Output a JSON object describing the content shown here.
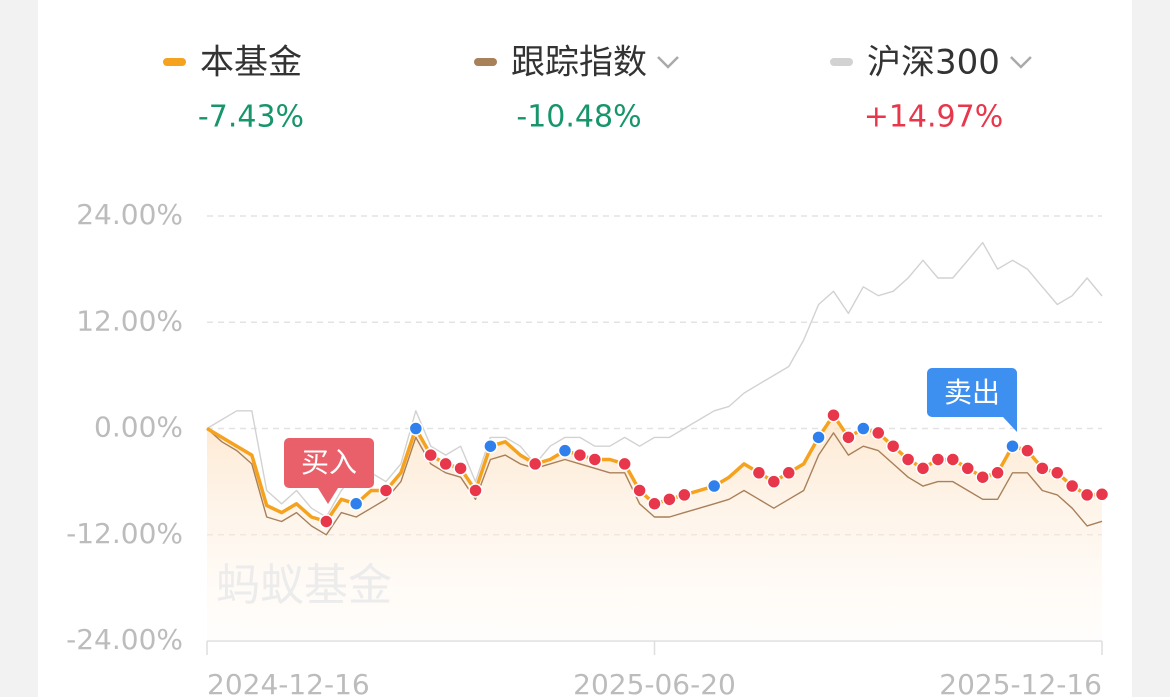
{
  "chart_data": {
    "type": "line",
    "categories": [
      "2024-12-16",
      null,
      null,
      null,
      null,
      null,
      null,
      null,
      null,
      null,
      null,
      null,
      null,
      null,
      null,
      null,
      null,
      null,
      null,
      null,
      null,
      null,
      null,
      null,
      null,
      null,
      null,
      null,
      null,
      null,
      "2025-06-20",
      null,
      null,
      null,
      null,
      null,
      null,
      null,
      null,
      null,
      null,
      null,
      null,
      null,
      null,
      null,
      null,
      null,
      null,
      null,
      null,
      null,
      null,
      null,
      null,
      null,
      null,
      null,
      null,
      null,
      "2025-12-16"
    ],
    "ylim": [
      -24,
      24
    ],
    "yticks": [
      {
        "value": 24,
        "label": "24.00%"
      },
      {
        "value": 12,
        "label": "12.00%"
      },
      {
        "value": 0,
        "label": "0.00%"
      },
      {
        "value": -12,
        "label": "-12.00%"
      },
      {
        "value": -24,
        "label": "-24.00%"
      }
    ],
    "grid": true,
    "watermark": "蚂蚁基金",
    "up_color": "#e8364a",
    "down_color": "#17966a",
    "series": [
      {
        "name": "本基金",
        "color": "#f5a21e",
        "change": -7.43,
        "change_label": "-7.43%",
        "dropdown": false,
        "area": true,
        "values": [
          0,
          -1,
          -2,
          -3,
          -8.7,
          -9.5,
          -8.5,
          -10,
          -10.5,
          -8,
          -8.5,
          -7,
          -7,
          -5,
          0,
          -3,
          -4,
          -4.5,
          -7,
          -2,
          -1.5,
          -3,
          -4,
          -3.5,
          -2.5,
          -3,
          -3.5,
          -3.5,
          -4,
          -7,
          -8.5,
          -8,
          -7.5,
          -7,
          -6.5,
          -5.5,
          -4,
          -5,
          -6,
          -5,
          -4,
          -1,
          1.5,
          -1,
          0,
          -0.5,
          -2,
          -3.5,
          -4.5,
          -3.5,
          -3.5,
          -4.5,
          -5.5,
          -5,
          -2,
          -2.5,
          -4.5,
          -5,
          -6.5,
          -7.5,
          -7.43
        ],
        "marker_colors": [
          null,
          null,
          null,
          null,
          null,
          null,
          null,
          null,
          "#e8364a",
          null,
          "#2f80ed",
          null,
          "#e8364a",
          null,
          "#2f80ed",
          "#e8364a",
          "#e8364a",
          "#e8364a",
          "#e8364a",
          "#2f80ed",
          null,
          null,
          "#e8364a",
          null,
          "#2f80ed",
          "#e8364a",
          "#e8364a",
          null,
          "#e8364a",
          "#e8364a",
          "#e8364a",
          "#e8364a",
          "#e8364a",
          null,
          "#2f80ed",
          null,
          null,
          "#e8364a",
          "#e8364a",
          "#e8364a",
          null,
          "#2f80ed",
          "#e8364a",
          "#e8364a",
          "#2f80ed",
          "#e8364a",
          "#e8364a",
          "#e8364a",
          "#e8364a",
          "#e8364a",
          "#e8364a",
          "#e8364a",
          "#e8364a",
          "#e8364a",
          "#2f80ed",
          "#e8364a",
          "#e8364a",
          "#e8364a",
          "#e8364a",
          "#e8364a",
          "#e8364a"
        ]
      },
      {
        "name": "跟踪指数",
        "color": "#a8805a",
        "change": -10.48,
        "change_label": "-10.48%",
        "dropdown": true,
        "area": false,
        "values": [
          0,
          -1.5,
          -2.5,
          -4,
          -10,
          -10.5,
          -9.5,
          -11,
          -12,
          -9.5,
          -10,
          -9,
          -8,
          -6,
          -1,
          -4,
          -5,
          -5.5,
          -8,
          -3.5,
          -3,
          -4,
          -4.5,
          -4,
          -3.5,
          -4,
          -4.5,
          -5,
          -5,
          -8.5,
          -10,
          -10,
          -9.5,
          -9,
          -8.5,
          -8,
          -7,
          -8,
          -9,
          -8,
          -7,
          -3,
          -0.5,
          -3,
          -2,
          -2.5,
          -4,
          -5.5,
          -6.5,
          -6,
          -6,
          -7,
          -8,
          -8,
          -5,
          -5,
          -7,
          -7.5,
          -9,
          -11,
          -10.48
        ]
      },
      {
        "name": "沪深300",
        "color": "#d2d2d2",
        "change": 14.97,
        "change_label": "+14.97%",
        "dropdown": true,
        "area": false,
        "values": [
          0,
          1,
          2,
          2,
          -7,
          -8.5,
          -7,
          -9,
          -10,
          -7,
          -5,
          -5,
          -6,
          -4,
          2,
          -2,
          -3,
          -2,
          -6,
          -1,
          -1,
          -2,
          -4,
          -2,
          -1,
          -1,
          -2,
          -2,
          -1,
          -2,
          -1,
          -1,
          0,
          1,
          2,
          2.5,
          4,
          5,
          6,
          7,
          10,
          14,
          15.5,
          13,
          16,
          15,
          15.5,
          17,
          19,
          17,
          17,
          19,
          21,
          18,
          19,
          18,
          16,
          14,
          15,
          17,
          14.97
        ]
      }
    ],
    "annotations": [
      {
        "text": "买入"
      },
      {
        "text": "卖出"
      }
    ]
  }
}
